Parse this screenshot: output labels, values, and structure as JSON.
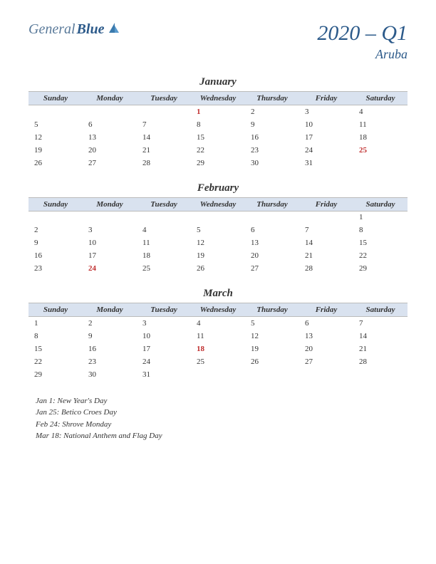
{
  "logo": {
    "part1": "General",
    "part2": "Blue"
  },
  "title": "2020 – Q1",
  "country": "Aruba",
  "day_headers": [
    "Sunday",
    "Monday",
    "Tuesday",
    "Wednesday",
    "Thursday",
    "Friday",
    "Saturday"
  ],
  "header_bg": "#d9e2ef",
  "holiday_color": "#c03030",
  "text_color": "#333333",
  "accent_color": "#2c5a8a",
  "months": [
    {
      "name": "January",
      "weeks": [
        [
          null,
          null,
          null,
          {
            "d": 1,
            "h": true
          },
          {
            "d": 2
          },
          {
            "d": 3
          },
          {
            "d": 4
          }
        ],
        [
          {
            "d": 5
          },
          {
            "d": 6
          },
          {
            "d": 7
          },
          {
            "d": 8
          },
          {
            "d": 9
          },
          {
            "d": 10
          },
          {
            "d": 11
          }
        ],
        [
          {
            "d": 12
          },
          {
            "d": 13
          },
          {
            "d": 14
          },
          {
            "d": 15
          },
          {
            "d": 16
          },
          {
            "d": 17
          },
          {
            "d": 18
          }
        ],
        [
          {
            "d": 19
          },
          {
            "d": 20
          },
          {
            "d": 21
          },
          {
            "d": 22
          },
          {
            "d": 23
          },
          {
            "d": 24
          },
          {
            "d": 25,
            "h": true
          }
        ],
        [
          {
            "d": 26
          },
          {
            "d": 27
          },
          {
            "d": 28
          },
          {
            "d": 29
          },
          {
            "d": 30
          },
          {
            "d": 31
          },
          null
        ]
      ]
    },
    {
      "name": "February",
      "weeks": [
        [
          null,
          null,
          null,
          null,
          null,
          null,
          {
            "d": 1
          }
        ],
        [
          {
            "d": 2
          },
          {
            "d": 3
          },
          {
            "d": 4
          },
          {
            "d": 5
          },
          {
            "d": 6
          },
          {
            "d": 7
          },
          {
            "d": 8
          }
        ],
        [
          {
            "d": 9
          },
          {
            "d": 10
          },
          {
            "d": 11
          },
          {
            "d": 12
          },
          {
            "d": 13
          },
          {
            "d": 14
          },
          {
            "d": 15
          }
        ],
        [
          {
            "d": 16
          },
          {
            "d": 17
          },
          {
            "d": 18
          },
          {
            "d": 19
          },
          {
            "d": 20
          },
          {
            "d": 21
          },
          {
            "d": 22
          }
        ],
        [
          {
            "d": 23
          },
          {
            "d": 24,
            "h": true
          },
          {
            "d": 25
          },
          {
            "d": 26
          },
          {
            "d": 27
          },
          {
            "d": 28
          },
          {
            "d": 29
          }
        ]
      ]
    },
    {
      "name": "March",
      "weeks": [
        [
          {
            "d": 1
          },
          {
            "d": 2
          },
          {
            "d": 3
          },
          {
            "d": 4
          },
          {
            "d": 5
          },
          {
            "d": 6
          },
          {
            "d": 7
          }
        ],
        [
          {
            "d": 8
          },
          {
            "d": 9
          },
          {
            "d": 10
          },
          {
            "d": 11
          },
          {
            "d": 12
          },
          {
            "d": 13
          },
          {
            "d": 14
          }
        ],
        [
          {
            "d": 15
          },
          {
            "d": 16
          },
          {
            "d": 17
          },
          {
            "d": 18,
            "h": true
          },
          {
            "d": 19
          },
          {
            "d": 20
          },
          {
            "d": 21
          }
        ],
        [
          {
            "d": 22
          },
          {
            "d": 23
          },
          {
            "d": 24
          },
          {
            "d": 25
          },
          {
            "d": 26
          },
          {
            "d": 27
          },
          {
            "d": 28
          }
        ],
        [
          {
            "d": 29
          },
          {
            "d": 30
          },
          {
            "d": 31
          },
          null,
          null,
          null,
          null
        ]
      ]
    }
  ],
  "holidays": [
    "Jan 1: New Year's Day",
    "Jan 25: Betico Croes Day",
    "Feb 24: Shrove Monday",
    "Mar 18: National Anthem and Flag Day"
  ]
}
